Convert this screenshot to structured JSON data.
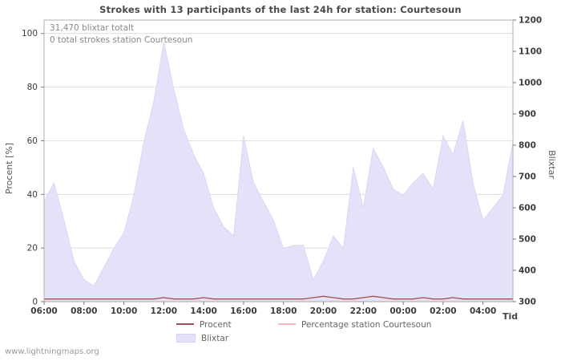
{
  "watermark": "www.lightningmaps.org",
  "colors": {
    "area_fill": "#e4e2f8",
    "area_edge": "#d6d3f2",
    "procent_line": "#a14e4e",
    "station_line": "#ffb3b3",
    "grid": "#cfcfcf",
    "border": "#b0b0b0",
    "tick_text": "#3c3c3c",
    "title_text": "#4a4a4a"
  },
  "chart_data": {
    "type": "area",
    "title": "Strokes with 13 participants of the last 24h for station: Courtesoun",
    "xlabel": "Tid",
    "ylabel_left": "Procent  [%]",
    "ylabel_right": "Blixtar",
    "annotations": {
      "total_blixtar": "31,470 blixtar totalt",
      "station_total": "0 total strokes station Courtesoun"
    },
    "legend": {
      "procent": "Procent",
      "station": "Percentage station Courtesoun",
      "blixtar": "Blixtar"
    },
    "left_ticks": [
      0,
      20,
      40,
      60,
      80,
      100
    ],
    "right_ticks": [
      300,
      400,
      500,
      600,
      700,
      800,
      900,
      1000,
      1100,
      1200
    ],
    "x_ticks": [
      "06:00",
      "08:00",
      "10:00",
      "12:00",
      "14:00",
      "16:00",
      "18:00",
      "20:00",
      "22:00",
      "00:00",
      "02:00",
      "04:00"
    ],
    "left_range": [
      0,
      105
    ],
    "right_range": [
      300,
      1200
    ],
    "x": [
      "06:00",
      "06:30",
      "07:00",
      "07:30",
      "08:00",
      "08:30",
      "09:00",
      "09:30",
      "10:00",
      "10:30",
      "11:00",
      "11:30",
      "12:00",
      "12:30",
      "13:00",
      "13:30",
      "14:00",
      "14:30",
      "15:00",
      "15:30",
      "16:00",
      "16:30",
      "17:00",
      "17:30",
      "18:00",
      "18:30",
      "19:00",
      "19:30",
      "20:00",
      "20:30",
      "21:00",
      "21:30",
      "22:00",
      "22:30",
      "23:00",
      "23:30",
      "00:00",
      "00:30",
      "01:00",
      "01:30",
      "02:00",
      "02:30",
      "03:00",
      "03:30",
      "04:00",
      "04:30",
      "05:00",
      "05:30"
    ],
    "series": [
      {
        "name": "Blixtar",
        "type": "area",
        "axis": "right",
        "values": [
          620,
          680,
          560,
          430,
          370,
          350,
          410,
          470,
          520,
          640,
          810,
          940,
          1130,
          980,
          850,
          770,
          710,
          600,
          540,
          510,
          830,
          680,
          620,
          560,
          470,
          480,
          480,
          370,
          430,
          510,
          470,
          730,
          600,
          790,
          730,
          660,
          640,
          680,
          710,
          660,
          830,
          770,
          880,
          680,
          560,
          600,
          640,
          810
        ]
      },
      {
        "name": "Procent",
        "type": "line",
        "axis": "left",
        "values": [
          1,
          1,
          1,
          1,
          1,
          1,
          1,
          1,
          1,
          1,
          1,
          1,
          1.5,
          1,
          1,
          1,
          1.5,
          1,
          1,
          1,
          1,
          1,
          1,
          1,
          1,
          1,
          1,
          1.5,
          2,
          1.5,
          1,
          1,
          1.5,
          2,
          1.5,
          1,
          1,
          1,
          1.5,
          1,
          1,
          1.5,
          1,
          1,
          1,
          1,
          1,
          1
        ]
      },
      {
        "name": "Percentage station Courtesoun",
        "type": "line",
        "axis": "left",
        "values": [
          0,
          0,
          0,
          0,
          0,
          0,
          0,
          0,
          0,
          0,
          0,
          0,
          0,
          0,
          0,
          0,
          0,
          0,
          0,
          0,
          0,
          0,
          0,
          0,
          0,
          0,
          0,
          0,
          0,
          0,
          0,
          0,
          0,
          0,
          0,
          0,
          0,
          0,
          0,
          0,
          0,
          0,
          0,
          0,
          0,
          0,
          0,
          0
        ]
      }
    ]
  }
}
